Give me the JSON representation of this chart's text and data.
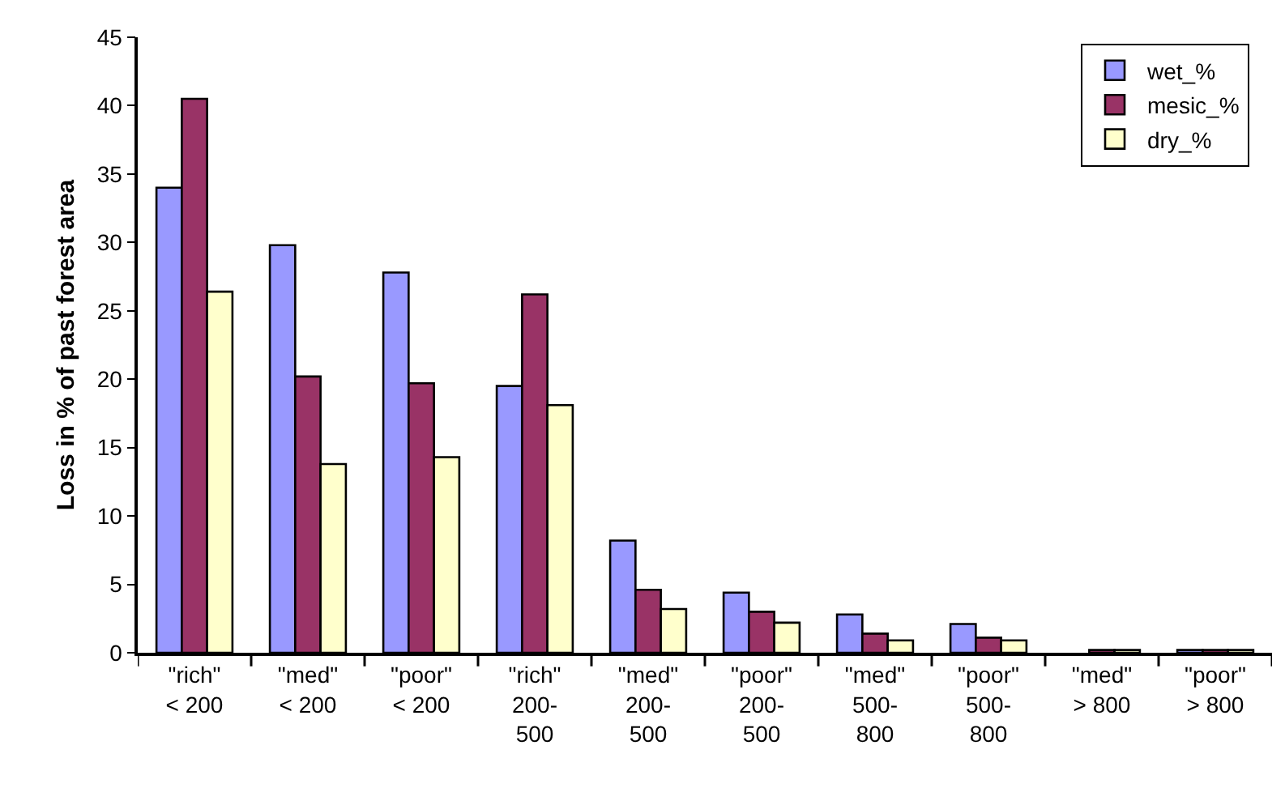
{
  "chart_data": {
    "type": "bar",
    "ylabel": "Loss in % of past forest area",
    "categories": [
      "\"rich\"\n< 200",
      "\"med\"\n< 200",
      "\"poor\"\n< 200",
      "\"rich\"\n200-\n500",
      "\"med\"\n200-\n500",
      "\"poor\"\n200-\n500",
      "\"med\"\n500-\n800",
      "\"poor\"\n500-\n800",
      "\"med\"\n> 800",
      "\"poor\"\n> 800"
    ],
    "series": [
      {
        "name": "wet_%",
        "color": "#9999ff",
        "values": [
          34,
          29.8,
          27.8,
          19.5,
          8.2,
          4.4,
          2.8,
          2.1,
          null,
          0.2
        ]
      },
      {
        "name": "mesic_%",
        "color": "#993366",
        "values": [
          40.5,
          20.2,
          19.7,
          26.2,
          4.6,
          3.0,
          1.4,
          1.1,
          0.2,
          0.2
        ]
      },
      {
        "name": "dry_%",
        "color": "#ffffcc",
        "values": [
          26.4,
          13.8,
          14.3,
          18.1,
          3.2,
          2.2,
          0.9,
          0.9,
          0.2,
          0.2
        ]
      }
    ],
    "ylim": [
      0,
      45
    ],
    "yticks": [
      0,
      5,
      10,
      15,
      20,
      25,
      30,
      35,
      40,
      45
    ],
    "grid": false,
    "legend": "top right"
  }
}
